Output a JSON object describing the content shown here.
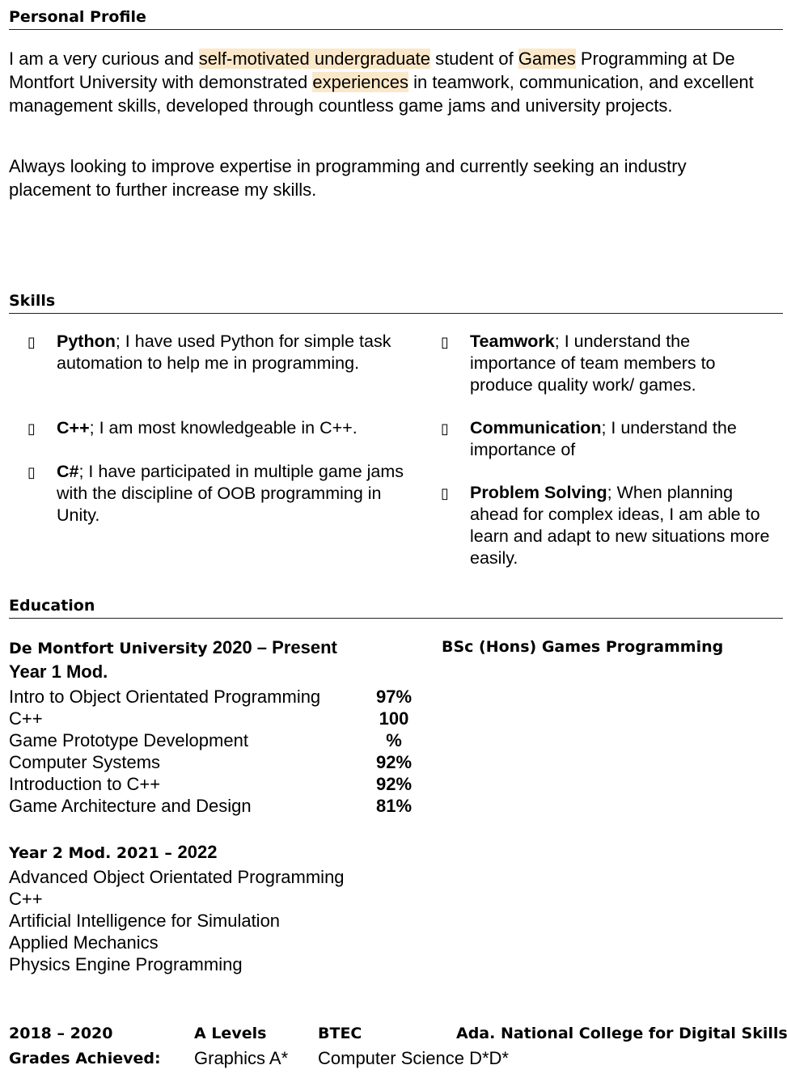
{
  "profile": {
    "heading": "Personal Profile",
    "p1_a": "I am a very curious and ",
    "p1_hl1": "self-motivated undergraduate",
    "p1_b": " student of ",
    "p1_hl2": "Games",
    "p1_c": " Programming at De Montfort University with demonstrated ",
    "p1_hl3": "experiences",
    "p1_d": " in teamwork, communication, and excellent management skills, developed through countless game jams and university projects.",
    "p2": "Always looking to improve expertise in programming and currently seeking an industry placement to further increase my skills."
  },
  "skills": {
    "heading": "Skills",
    "bullet_icon": "bullet-icon",
    "bullet_glyph": "▯",
    "left": [
      {
        "name": "Python",
        "text": "; I have used Python for simple task automation to help me in programming."
      },
      {
        "name": "C++",
        "text": "; I am most knowledgeable in C++."
      },
      {
        "name": "C#",
        "text": "; I have participated in multiple game jams with the discipline of OOB programming in Unity."
      }
    ],
    "right": [
      {
        "name": "Teamwork",
        "text": "; I understand the importance of team members to produce quality work/ games."
      },
      {
        "name": "Communication",
        "text": "; I understand the importance of"
      },
      {
        "name": "Problem Solving",
        "text": "; When planning ahead for complex ideas, I am able to learn and adapt to new situations more easily."
      }
    ]
  },
  "education": {
    "heading": "Education",
    "uni": "De Montfort University",
    "uni_dates": " 2020 – Present",
    "degree": "BSc (Hons) Games Programming",
    "year1_title": "Year 1 Mod.",
    "year1_modules": [
      "Intro to Object Orientated Programming",
      "C++",
      "Game Prototype Development",
      "Computer Systems",
      "Introduction to C++",
      "Game Architecture and Design"
    ],
    "year1_grades": [
      "97%",
      "100",
      "%",
      "92%",
      "92%",
      "81%"
    ],
    "year2_title_a": "Year 2 Mod. 2021 – ",
    "year2_title_b": "2022",
    "year2_modules": [
      "Advanced Object Orientated Programming",
      "C++",
      "Artificial Intelligence for Simulation",
      "Applied Mechanics",
      "Physics Engine Programming"
    ],
    "college_dates": "2018 – 2020",
    "a_levels": "A Levels",
    "btec": "BTEC",
    "college": "Ada. National College for Digital Skills",
    "grades_label": "Grades Achieved:",
    "a_level_grade": "Graphics A*",
    "btec_grade": "Computer Science D*D*"
  }
}
